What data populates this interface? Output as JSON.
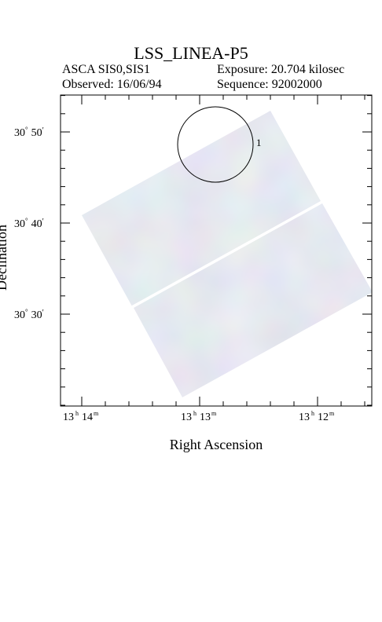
{
  "title": "LSS_LINEA-P5",
  "header": {
    "instrument": "ASCA SIS0,SIS1",
    "exposure": "Exposure: 20.704 kilosec",
    "observed": "Observed: 16/06/94",
    "sequence": "Sequence: 92002000"
  },
  "axes": {
    "xlabel": "Right Ascension",
    "ylabel": "Declination",
    "x_ticks": [
      {
        "h": "13",
        "m": "14"
      },
      {
        "h": "13",
        "m": "13"
      },
      {
        "h": "13",
        "m": "12"
      }
    ],
    "y_ticks": [
      {
        "deg": "30",
        "min": "50"
      },
      {
        "deg": "30",
        "min": "40"
      },
      {
        "deg": "30",
        "min": "30"
      }
    ]
  },
  "source_marker": {
    "label": "1"
  },
  "colors": {
    "image_base": "#c3c8e0",
    "frame": "#000000"
  }
}
